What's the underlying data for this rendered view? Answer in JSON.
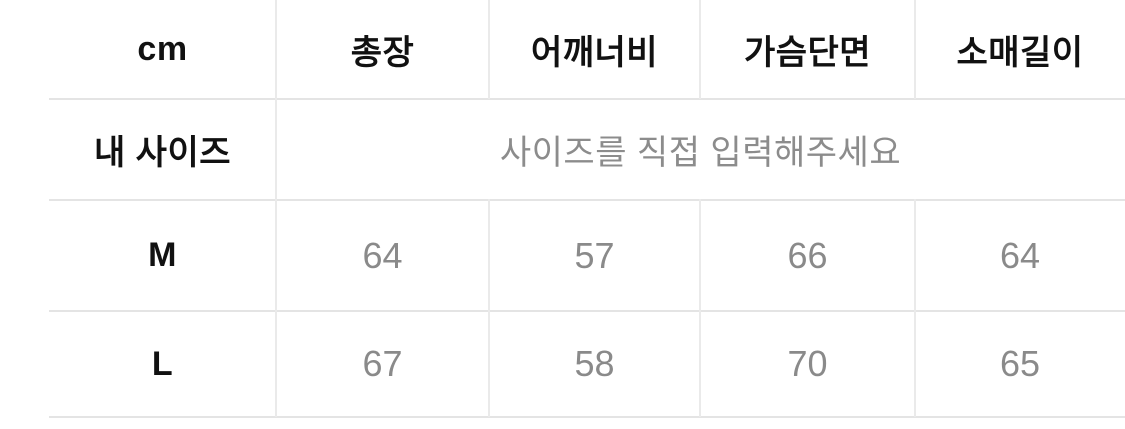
{
  "size_chart": {
    "unit_header": "cm",
    "columns": [
      "총장",
      "어깨너비",
      "가슴단면",
      "소매길이"
    ],
    "my_size": {
      "label": "내 사이즈",
      "placeholder": "사이즈를 직접 입력해주세요"
    },
    "rows": [
      {
        "size": "M",
        "values": [
          "64",
          "57",
          "66",
          "64"
        ]
      },
      {
        "size": "L",
        "values": [
          "67",
          "58",
          "70",
          "65"
        ]
      }
    ],
    "colors": {
      "label_text": "#111111",
      "value_text": "#8a8a8a",
      "placeholder_text": "#8c8c8c",
      "grid_line": "#e4e4e4",
      "background": "#ffffff"
    }
  }
}
